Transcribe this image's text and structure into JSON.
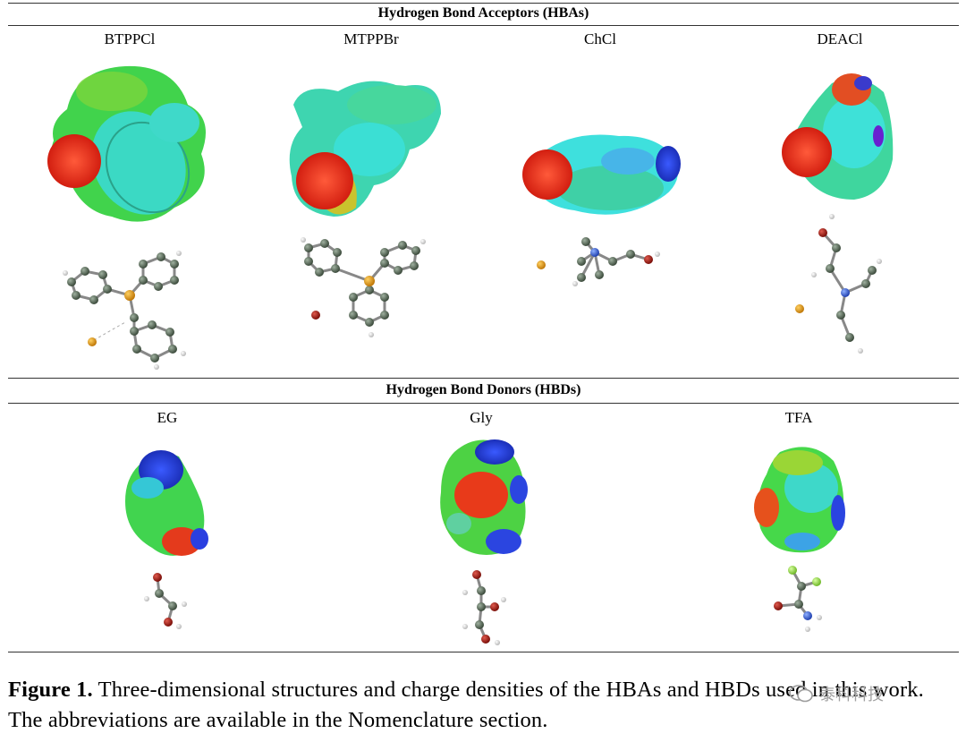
{
  "hba_section": {
    "title": "Hydrogen Bond Acceptors (HBAs)",
    "molecules": [
      {
        "label": "BTPPCl"
      },
      {
        "label": "MTPPBr"
      },
      {
        "label": "ChCl"
      },
      {
        "label": "DEACl"
      }
    ]
  },
  "hbd_section": {
    "title": "Hydrogen Bond Donors (HBDs)",
    "molecules": [
      {
        "label": "EG"
      },
      {
        "label": "Gly"
      },
      {
        "label": "TFA"
      }
    ]
  },
  "caption": {
    "figure_label": "Figure 1.",
    "text": " Three-dimensional structures and charge densities of the HBAs and HBDs used in this work. The abbreviations are available in the Nomenclature section."
  },
  "watermark": {
    "text": "泰科科技",
    "icon": "wechat-icon"
  },
  "colors": {
    "surface_red": "#e8331c",
    "surface_green": "#3fd24f",
    "surface_cyan": "#35e3e0",
    "surface_blue": "#1f3fe0",
    "atom_carbon": "#5b6e5b",
    "atom_oxygen": "#b21a12",
    "atom_nitrogen": "#3a63d8",
    "atom_fluorine": "#9ae050",
    "atom_halide": "#e8a21a",
    "atom_hydrogen": "#eeeeee"
  }
}
